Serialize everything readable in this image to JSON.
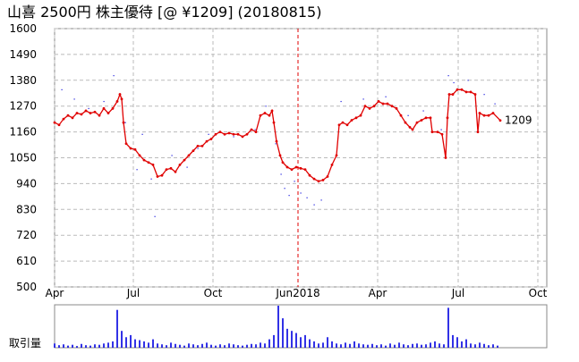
{
  "chart_data": [
    {
      "type": "line",
      "title": "山喜 2500円 株主優待  [@ ¥1209] (20180815)",
      "xlim": [
        0,
        550
      ],
      "xticks": [
        {
          "value": 0,
          "label": "Apr"
        },
        {
          "value": 88,
          "label": "Jul"
        },
        {
          "value": 177,
          "label": "Oct"
        },
        {
          "value": 272,
          "label": "Jun2018"
        },
        {
          "value": 361,
          "label": "Apr"
        },
        {
          "value": 451,
          "label": "Jul"
        },
        {
          "value": 540,
          "label": "Oct"
        }
      ],
      "ylim": [
        500,
        1600
      ],
      "yticks": [
        500,
        610,
        720,
        830,
        940,
        1050,
        1160,
        1270,
        1380,
        1490,
        1600
      ],
      "grid": true,
      "series": [
        {
          "color": "#e00000",
          "x": [
            0,
            5,
            10,
            15,
            20,
            25,
            30,
            35,
            40,
            45,
            50,
            55,
            60,
            65,
            70,
            73,
            75,
            77,
            80,
            85,
            90,
            95,
            100,
            105,
            110,
            115,
            120,
            125,
            130,
            135,
            140,
            145,
            150,
            155,
            160,
            165,
            170,
            175,
            180,
            185,
            190,
            195,
            200,
            205,
            210,
            215,
            220,
            225,
            230,
            235,
            240,
            243,
            245,
            248,
            252,
            255,
            260,
            265,
            270,
            275,
            280,
            285,
            290,
            295,
            300,
            305,
            310,
            315,
            318,
            322,
            327,
            332,
            337,
            342,
            347,
            352,
            357,
            362,
            367,
            372,
            377,
            382,
            387,
            392,
            397,
            400,
            405,
            410,
            415,
            420,
            422,
            428,
            433,
            437,
            439,
            441,
            445,
            450,
            455,
            460,
            465,
            470,
            473,
            475,
            480,
            485,
            490,
            498
          ],
          "values": [
            1200,
            1190,
            1215,
            1230,
            1220,
            1240,
            1235,
            1250,
            1240,
            1245,
            1230,
            1260,
            1240,
            1260,
            1290,
            1320,
            1300,
            1200,
            1110,
            1090,
            1085,
            1060,
            1040,
            1030,
            1020,
            970,
            975,
            1000,
            1005,
            990,
            1020,
            1040,
            1060,
            1080,
            1100,
            1100,
            1120,
            1130,
            1150,
            1160,
            1150,
            1155,
            1150,
            1150,
            1140,
            1150,
            1170,
            1160,
            1230,
            1240,
            1230,
            1250,
            1200,
            1120,
            1060,
            1030,
            1010,
            1000,
            1010,
            1005,
            1000,
            975,
            960,
            950,
            955,
            970,
            1020,
            1060,
            1190,
            1200,
            1190,
            1210,
            1220,
            1230,
            1270,
            1260,
            1270,
            1290,
            1280,
            1280,
            1270,
            1260,
            1230,
            1200,
            1180,
            1170,
            1200,
            1210,
            1220,
            1220,
            1160,
            1160,
            1150,
            1050,
            1220,
            1320,
            1320,
            1340,
            1340,
            1330,
            1330,
            1320,
            1160,
            1240,
            1230,
            1230,
            1240,
            1209
          ],
          "annotation": "1209"
        },
        {
          "color": "#2020e0",
          "style": "dots",
          "x": [
            8,
            22,
            38,
            55,
            66,
            79,
            92,
            98,
            108,
            112,
            131,
            148,
            160,
            172,
            200,
            224,
            236,
            247,
            253,
            257,
            262,
            268,
            275,
            282,
            290,
            298,
            320,
            345,
            370,
            395,
            412,
            432,
            440,
            446,
            462,
            480,
            492
          ],
          "values": [
            1340,
            1300,
            1260,
            1290,
            1400,
            1200,
            1000,
            1150,
            960,
            800,
            1060,
            1010,
            1090,
            1150,
            1140,
            1170,
            1270,
            1110,
            980,
            920,
            890,
            950,
            900,
            880,
            850,
            870,
            1290,
            1300,
            1310,
            1230,
            1250,
            1170,
            1400,
            1370,
            1380,
            1320,
            1280
          ]
        }
      ]
    },
    {
      "type": "volume",
      "ylabel": "取引量",
      "xlim": [
        0,
        550
      ],
      "ylim": [
        0,
        100
      ],
      "color": "#0000e0",
      "x": [
        0,
        5,
        10,
        15,
        20,
        25,
        30,
        35,
        40,
        45,
        50,
        55,
        60,
        65,
        70,
        75,
        80,
        85,
        90,
        95,
        100,
        105,
        110,
        115,
        120,
        125,
        130,
        135,
        140,
        145,
        150,
        155,
        160,
        165,
        170,
        175,
        180,
        185,
        190,
        195,
        200,
        205,
        210,
        215,
        220,
        225,
        230,
        235,
        240,
        245,
        250,
        255,
        260,
        265,
        270,
        275,
        280,
        285,
        290,
        295,
        300,
        305,
        310,
        315,
        320,
        325,
        330,
        335,
        340,
        345,
        350,
        355,
        360,
        365,
        370,
        375,
        380,
        385,
        390,
        395,
        400,
        405,
        410,
        415,
        420,
        425,
        430,
        435,
        440,
        445,
        450,
        455,
        460,
        465,
        470,
        475,
        480,
        485,
        490,
        495
      ],
      "values": [
        10,
        6,
        8,
        5,
        7,
        4,
        9,
        6,
        5,
        8,
        7,
        10,
        12,
        15,
        90,
        40,
        25,
        30,
        20,
        18,
        15,
        12,
        20,
        10,
        8,
        6,
        12,
        9,
        7,
        5,
        10,
        8,
        6,
        9,
        12,
        7,
        5,
        8,
        6,
        10,
        8,
        6,
        5,
        7,
        9,
        8,
        12,
        10,
        20,
        30,
        100,
        70,
        45,
        40,
        35,
        25,
        30,
        20,
        15,
        10,
        12,
        25,
        15,
        10,
        8,
        12,
        9,
        15,
        10,
        8,
        7,
        9,
        6,
        8,
        5,
        10,
        7,
        12,
        8,
        6,
        9,
        10,
        7,
        8,
        12,
        15,
        10,
        8,
        95,
        30,
        25,
        15,
        20,
        10,
        8,
        12,
        9,
        6,
        8,
        5
      ]
    }
  ]
}
